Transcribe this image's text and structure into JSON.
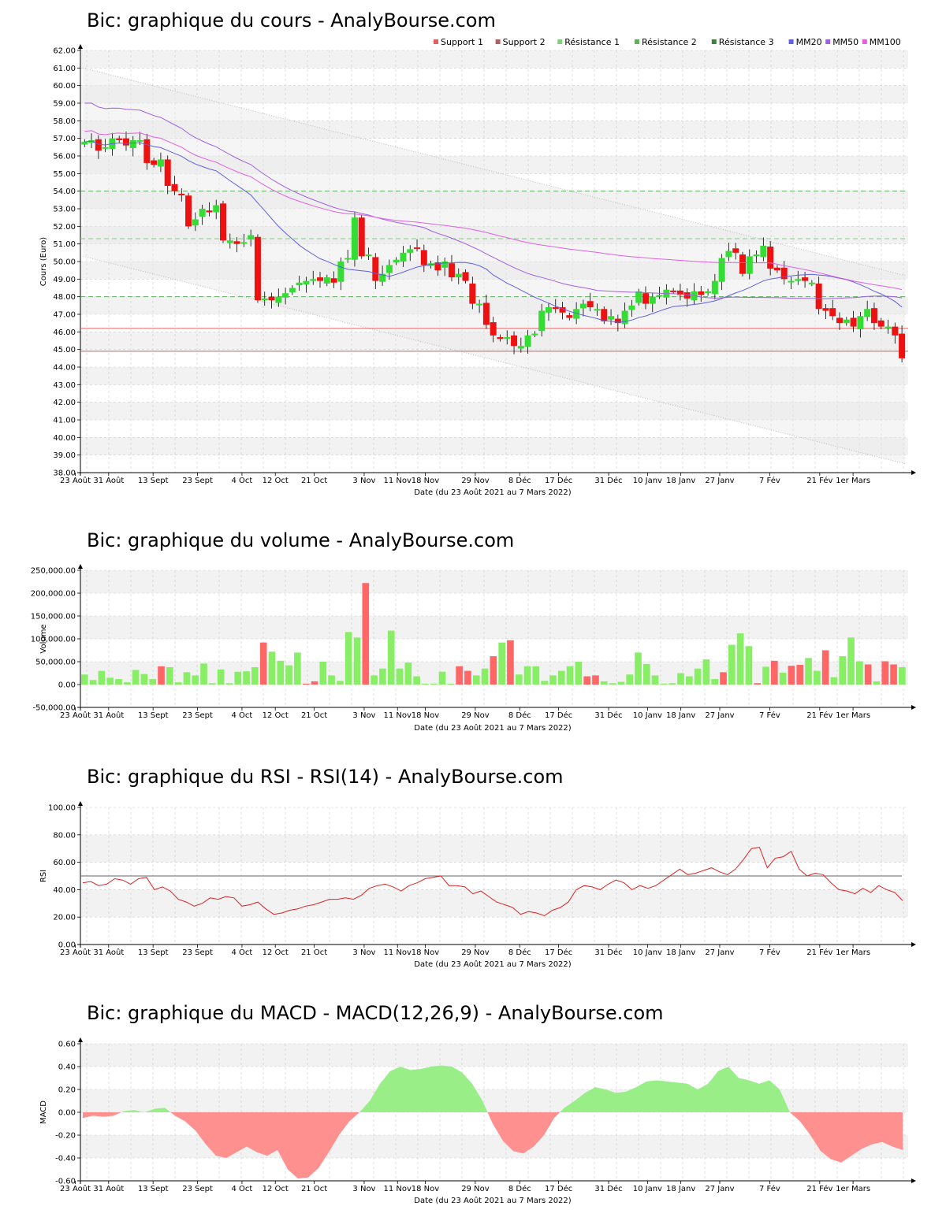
{
  "chart_data": [
    {
      "type": "candlestick",
      "title": "Bic: graphique du cours - AnalyBourse.com",
      "xlabel": "Date (du 23 Août 2021 au 7 Mars 2022)",
      "ylabel": "Cours (Euro)",
      "ylim": [
        38,
        62
      ],
      "y_ticks": [
        "38.00",
        "39.00",
        "40.00",
        "41.00",
        "42.00",
        "43.00",
        "44.00",
        "45.00",
        "46.00",
        "47.00",
        "48.00",
        "49.00",
        "50.00",
        "51.00",
        "52.00",
        "53.00",
        "54.00",
        "55.00",
        "56.00",
        "57.00",
        "58.00",
        "59.00",
        "60.00",
        "61.00",
        "62.00"
      ],
      "x_tick_labels": [
        "23 Août",
        "31 Août",
        "13 Sept",
        "23 Sept",
        "4 Oct",
        "12 Oct",
        "21 Oct",
        "3 Nov",
        "11 Nov",
        "18 Nov",
        "29 Nov",
        "8 Déc",
        "17 Déc",
        "31 Déc",
        "10 Janv",
        "18 Janv",
        "27 Janv",
        "7 Fév",
        "21 Fév",
        "1er Mars"
      ],
      "x_tick_positions": [
        0,
        6,
        14,
        22,
        30,
        36,
        43,
        52,
        58,
        63,
        72,
        80,
        87,
        96,
        103,
        109,
        116,
        125,
        134,
        140
      ],
      "legend": [
        {
          "name": "Support 1",
          "color": "#e06060"
        },
        {
          "name": "Support 2",
          "color": "#b06060"
        },
        {
          "name": "Résistance 1",
          "color": "#80d080"
        },
        {
          "name": "Résistance 2",
          "color": "#60b060"
        },
        {
          "name": "Résistance 3",
          "color": "#408040"
        },
        {
          "name": "MM20",
          "color": "#6060e0"
        },
        {
          "name": "MM50",
          "color": "#a060e0"
        },
        {
          "name": "MM100",
          "color": "#e060e0"
        }
      ],
      "levels": {
        "support1": 46.2,
        "support2": 44.9,
        "resistance1": 48.0,
        "resistance2": 51.3,
        "resistance3": 54.0
      },
      "channel_upper": [
        [
          0,
          61.0
        ],
        [
          148,
          49.2
        ]
      ],
      "channel_lower": [
        [
          0,
          50.3
        ],
        [
          148,
          38.5
        ]
      ],
      "closes": [
        56.8,
        56.9,
        56.3,
        56.5,
        57.0,
        56.9,
        56.6,
        56.9,
        56.9,
        55.6,
        55.5,
        55.8,
        54.3,
        54.0,
        53.8,
        52.0,
        52.4,
        53.0,
        52.8,
        53.2,
        51.2,
        51.2,
        51.0,
        51.1,
        51.5,
        47.8,
        47.9,
        47.8,
        48.0,
        48.2,
        48.5,
        48.8,
        48.9,
        49.0,
        48.9,
        49.1,
        48.8,
        50.0,
        50.2,
        52.5,
        50.3,
        50.4,
        48.9,
        49.3,
        49.8,
        50.1,
        50.5,
        50.7,
        50.8,
        49.8,
        49.9,
        49.5,
        50.0,
        49.1,
        49.3,
        48.9,
        47.6,
        47.6,
        46.4,
        45.8,
        45.6,
        45.7,
        45.2,
        45.2,
        45.8,
        45.9,
        47.2,
        47.4,
        47.3,
        47.1,
        46.8,
        47.3,
        47.6,
        47.4,
        47.3,
        46.6,
        46.9,
        46.5,
        47.2,
        47.5,
        48.3,
        47.6,
        48.0,
        48.1,
        48.4,
        48.3,
        48.1,
        47.9,
        48.3,
        48.1,
        48.3,
        48.9,
        50.2,
        50.6,
        50.5,
        49.3,
        50.3,
        50.4,
        50.9,
        49.6,
        49.5,
        49.0,
        48.9,
        49.0,
        48.9,
        48.8,
        47.3,
        47.2,
        46.9,
        46.5,
        46.7,
        46.3,
        46.9,
        47.3,
        46.5,
        46.3,
        46.3,
        45.8,
        44.5
      ],
      "notes_candles_colors": {
        "up": "#33dd33",
        "down": "#ee1111"
      }
    },
    {
      "type": "bar",
      "title": "Bic: graphique du volume - AnalyBourse.com",
      "xlabel": "Date (du 23 Août 2021 au 7 Mars 2022)",
      "ylabel": "Volume",
      "ylim": [
        -50000,
        250000
      ],
      "y_ticks": [
        "-50,000.00",
        "0.00",
        "50,000.00",
        "100,000.00",
        "150,000.00",
        "200,000.00",
        "250,000.00"
      ],
      "x_tick_labels": [
        "23 Août",
        "31 Août",
        "13 Sept",
        "23 Sept",
        "4 Oct",
        "12 Oct",
        "21 Oct",
        "3 Nov",
        "11 Nov",
        "18 Nov",
        "29 Nov",
        "8 Déc",
        "17 Déc",
        "31 Déc",
        "10 Janv",
        "18 Janv",
        "27 Janv",
        "7 Fév",
        "21 Fév",
        "1er Mars"
      ],
      "values": [
        22000,
        10000,
        30000,
        15000,
        12000,
        5000,
        32000,
        23000,
        12000,
        40000,
        38000,
        5000,
        27000,
        20000,
        46000,
        3000,
        33000,
        3000,
        28000,
        29000,
        38000,
        92000,
        72000,
        52000,
        42000,
        70000,
        2000,
        7000,
        50000,
        20000,
        8000,
        115000,
        103000,
        222000,
        20000,
        35000,
        118000,
        35000,
        48000,
        18000,
        2000,
        2000,
        28000,
        2000,
        40000,
        30000,
        20000,
        35000,
        62000,
        92000,
        97000,
        22000,
        40000,
        40000,
        8000,
        20000,
        30000,
        40000,
        50000,
        18000,
        20000,
        7000,
        3000,
        6000,
        22000,
        70000,
        45000,
        20000,
        2000,
        3000,
        25000,
        18000,
        35000,
        55000,
        12000,
        27000,
        87000,
        112000,
        84000,
        3000,
        39000,
        52000,
        26000,
        41000,
        43000,
        58000,
        30000,
        75000,
        16000,
        62000,
        103000,
        51000,
        44000,
        7000,
        51000,
        44000,
        38000
      ],
      "colors": [
        "g",
        "g",
        "g",
        "g",
        "g",
        "g",
        "g",
        "g",
        "g",
        "r",
        "g",
        "g",
        "g",
        "g",
        "g",
        "g",
        "g",
        "g",
        "g",
        "g",
        "g",
        "r",
        "g",
        "g",
        "g",
        "g",
        "r",
        "r",
        "g",
        "g",
        "g",
        "g",
        "g",
        "r",
        "g",
        "g",
        "g",
        "g",
        "g",
        "g",
        "g",
        "g",
        "g",
        "g",
        "r",
        "r",
        "g",
        "g",
        "r",
        "g",
        "r",
        "g",
        "g",
        "g",
        "g",
        "g",
        "g",
        "g",
        "g",
        "r",
        "r",
        "g",
        "g",
        "g",
        "g",
        "g",
        "g",
        "g",
        "g",
        "g",
        "g",
        "g",
        "g",
        "g",
        "g",
        "r",
        "g",
        "g",
        "g",
        "r",
        "g",
        "r",
        "g",
        "r",
        "r",
        "g",
        "g",
        "r",
        "g",
        "g",
        "g",
        "g",
        "r",
        "g",
        "r",
        "r",
        "g"
      ]
    },
    {
      "type": "line",
      "title": "Bic: graphique du RSI - RSI(14) - AnalyBourse.com",
      "xlabel": "Date (du 23 Août 2021 au 7 Mars 2022)",
      "ylabel": "RSI",
      "ylim": [
        0,
        100
      ],
      "y_ticks": [
        "0.00",
        "20.00",
        "40.00",
        "60.00",
        "80.00",
        "100.00"
      ],
      "x_tick_labels": [
        "23 Août",
        "31 Août",
        "13 Sept",
        "23 Sept",
        "4 Oct",
        "12 Oct",
        "21 Oct",
        "3 Nov",
        "11 Nov",
        "18 Nov",
        "29 Nov",
        "8 Déc",
        "17 Déc",
        "31 Déc",
        "10 Janv",
        "18 Janv",
        "27 Janv",
        "7 Fév",
        "21 Fév",
        "1er Mars"
      ],
      "reference_line": 50,
      "values": [
        45,
        46,
        43,
        44,
        48,
        47,
        44,
        48,
        49,
        40,
        42,
        39,
        33,
        31,
        28,
        30,
        34,
        33,
        35,
        34,
        28,
        29,
        31,
        26,
        22,
        23,
        25,
        26,
        28,
        29,
        31,
        33,
        33,
        34,
        33,
        36,
        41,
        43,
        44,
        42,
        39,
        43,
        45,
        48,
        49,
        50,
        43,
        43,
        42,
        37,
        39,
        35,
        31,
        29,
        27,
        22,
        24,
        23,
        21,
        25,
        27,
        31,
        40,
        43,
        42,
        40,
        44,
        47,
        45,
        40,
        43,
        41,
        43,
        47,
        51,
        55,
        51,
        52,
        54,
        56,
        53,
        51,
        55,
        62,
        70,
        71,
        56,
        63,
        64,
        68,
        55,
        50,
        52,
        51,
        45,
        40,
        39,
        37,
        41,
        38,
        43,
        40,
        38,
        32
      ]
    },
    {
      "type": "area",
      "title": "Bic: graphique du MACD - MACD(12,26,9) - AnalyBourse.com",
      "xlabel": "Date (du 23 Août 2021 au 7 Mars 2022)",
      "ylabel": "MACD",
      "ylim": [
        -0.6,
        0.6
      ],
      "y_ticks": [
        "-0.60",
        "-0.40",
        "-0.20",
        "0.00",
        "0.20",
        "0.40",
        "0.60"
      ],
      "x_tick_labels": [
        "23 Août",
        "31 Août",
        "13 Sept",
        "23 Sept",
        "4 Oct",
        "12 Oct",
        "21 Oct",
        "3 Nov",
        "11 Nov",
        "18 Nov",
        "29 Nov",
        "8 Déc",
        "17 Déc",
        "31 Déc",
        "10 Janv",
        "18 Janv",
        "27 Janv",
        "7 Fév",
        "21 Fév",
        "1er Mars"
      ],
      "values": [
        -0.05,
        -0.03,
        -0.04,
        -0.03,
        0.01,
        0.02,
        0.0,
        0.03,
        0.04,
        -0.03,
        -0.08,
        -0.16,
        -0.28,
        -0.38,
        -0.4,
        -0.35,
        -0.3,
        -0.35,
        -0.38,
        -0.33,
        -0.5,
        -0.58,
        -0.57,
        -0.49,
        -0.35,
        -0.2,
        -0.08,
        0.0,
        0.1,
        0.25,
        0.36,
        0.4,
        0.37,
        0.38,
        0.4,
        0.41,
        0.4,
        0.35,
        0.25,
        0.1,
        -0.1,
        -0.25,
        -0.34,
        -0.36,
        -0.3,
        -0.2,
        -0.05,
        0.04,
        0.1,
        0.17,
        0.22,
        0.2,
        0.17,
        0.18,
        0.22,
        0.27,
        0.28,
        0.27,
        0.26,
        0.25,
        0.2,
        0.25,
        0.36,
        0.4,
        0.3,
        0.28,
        0.25,
        0.28,
        0.2,
        0.0,
        -0.08,
        -0.2,
        -0.34,
        -0.41,
        -0.44,
        -0.38,
        -0.32,
        -0.28,
        -0.26,
        -0.3,
        -0.33
      ]
    }
  ]
}
